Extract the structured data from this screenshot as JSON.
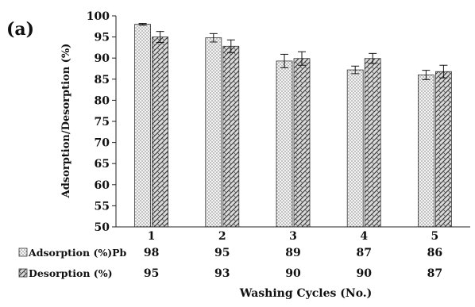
{
  "panel_label": "(a)",
  "chart_data": {
    "type": "bar",
    "title": "",
    "xlabel": "Washing Cycles (No.)",
    "ylabel": "Adsorption/Desorption (%)",
    "ylim": [
      50,
      100
    ],
    "yticks": [
      50,
      55,
      60,
      65,
      70,
      75,
      80,
      85,
      90,
      95,
      100
    ],
    "categories": [
      "1",
      "2",
      "3",
      "4",
      "5"
    ],
    "grid": false,
    "legend": "data-table-below",
    "series": [
      {
        "name": "Adsorption (%)Pb",
        "values": [
          98,
          95,
          89,
          87,
          86
        ],
        "plotted": [
          98.0,
          94.8,
          89.3,
          87.2,
          86.0
        ],
        "error": [
          0.2,
          1.0,
          1.6,
          0.9,
          1.1
        ],
        "pattern": "dots",
        "table_values": [
          "98",
          "95",
          "89",
          "87",
          "86"
        ]
      },
      {
        "name": "Desorption (%)",
        "values": [
          95,
          93,
          90,
          90,
          87
        ],
        "plotted": [
          95.0,
          92.8,
          89.9,
          89.9,
          86.8
        ],
        "error": [
          1.3,
          1.5,
          1.6,
          1.2,
          1.5
        ],
        "pattern": "weave",
        "table_values": [
          "95",
          "93",
          "90",
          "90",
          "87"
        ]
      }
    ]
  }
}
